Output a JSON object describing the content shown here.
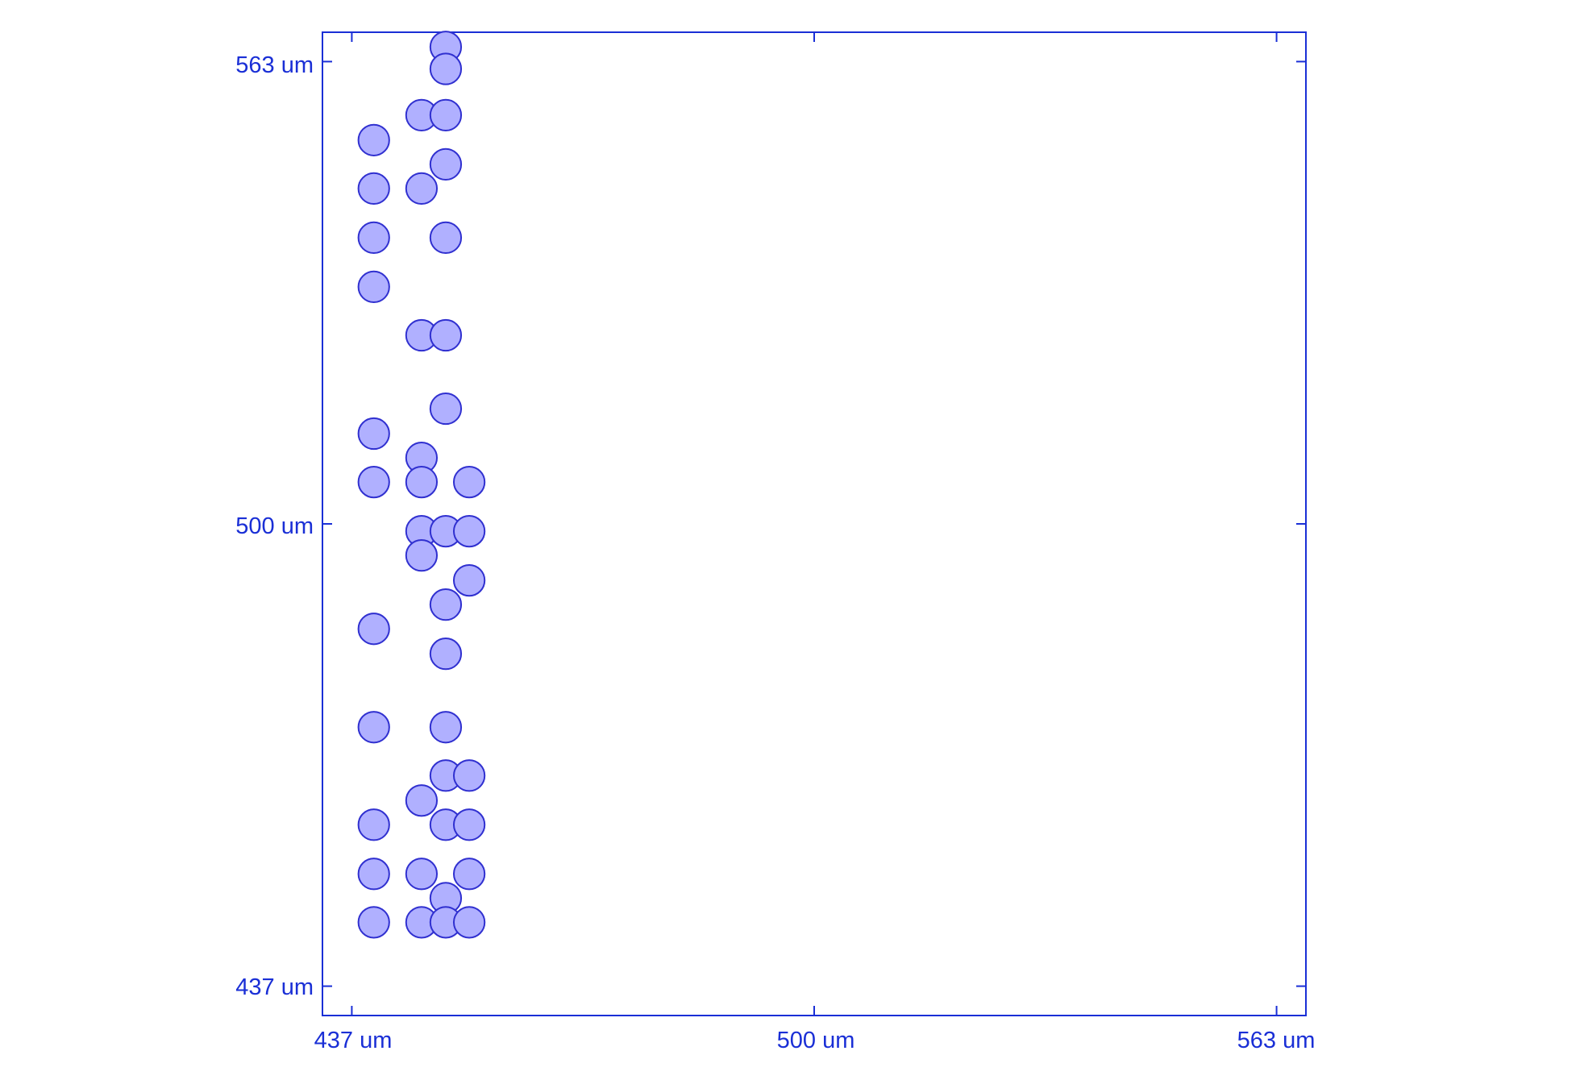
{
  "chart_data": {
    "type": "scatter",
    "title": "",
    "xlabel": "",
    "ylabel": "",
    "xlim": [
      433,
      567
    ],
    "ylim": [
      433,
      567
    ],
    "x_ticks": [
      437,
      500,
      563
    ],
    "y_ticks": [
      437,
      500,
      563
    ],
    "x_tick_labels": [
      "437 um",
      "500 um",
      "563 um"
    ],
    "y_tick_labels": [
      "437 um",
      "500 um",
      "563 um"
    ],
    "grid": false,
    "legend": "none",
    "axis_color": "#1a2fd6",
    "marker_diameter_um": 4.2,
    "lattice": {
      "columns_x": [
        440.0,
        443.3,
        446.5,
        449.8,
        453.0,
        456.3,
        459.5,
        462.8,
        466.0,
        469.3,
        472.5,
        475.8,
        479.0,
        482.3,
        485.5,
        488.8,
        492.0,
        495.3,
        498.5,
        501.8,
        505.0,
        508.3,
        511.5,
        514.8,
        518.0,
        521.3,
        524.5,
        527.8,
        531.0,
        534.3,
        537.5,
        540.8,
        544.0,
        547.3,
        550.5,
        553.8,
        557.0,
        560.3
      ],
      "rows_y": [
        562.0,
        559.0,
        555.7,
        552.3,
        549.0,
        545.7,
        542.3,
        539.0,
        535.7,
        532.3,
        529.0,
        525.7,
        522.3,
        519.0,
        515.7,
        512.3,
        509.0,
        505.7,
        502.3,
        499.0,
        495.7,
        492.3,
        489.0,
        485.7,
        482.3,
        479.0,
        475.7,
        472.3,
        469.0,
        465.7,
        462.3,
        459.0,
        455.7,
        452.3,
        449.0,
        445.7,
        442.3,
        439.0,
        435.8
      ]
    },
    "series": [
      {
        "color": "#3030d0",
        "fill": "#b0b0ff",
        "points": [
          [
            440.0,
            552.3
          ],
          [
            440.0,
            545.7
          ],
          [
            440.0,
            539.0
          ],
          [
            440.0,
            532.3
          ],
          [
            440.0,
            512.3
          ],
          [
            440.0,
            505.7
          ],
          [
            440.0,
            485.7
          ],
          [
            440.0,
            472.3
          ],
          [
            440.0,
            459.0
          ],
          [
            440.0,
            452.3
          ],
          [
            440.0,
            445.7
          ],
          [
            446.5,
            555.7
          ],
          [
            446.5,
            545.7
          ],
          [
            446.5,
            525.7
          ],
          [
            446.5,
            509.0
          ],
          [
            446.5,
            505.7
          ],
          [
            446.5,
            499.0
          ],
          [
            446.5,
            495.7
          ],
          [
            446.5,
            462.3
          ],
          [
            446.5,
            452.3
          ],
          [
            446.5,
            445.7
          ],
          [
            449.8,
            565.0
          ],
          [
            449.8,
            562.0
          ],
          [
            449.8,
            555.7
          ],
          [
            449.8,
            549.0
          ],
          [
            449.8,
            539.0
          ],
          [
            449.8,
            525.7
          ],
          [
            449.8,
            515.7
          ],
          [
            449.8,
            499.0
          ],
          [
            449.8,
            489.0
          ],
          [
            449.8,
            482.3
          ],
          [
            449.8,
            472.3
          ],
          [
            449.8,
            465.7
          ],
          [
            449.8,
            459.0
          ],
          [
            449.8,
            449.0
          ],
          [
            449.8,
            445.7
          ],
          [
            453.0,
            505.7
          ],
          [
            453.0,
            499.0
          ],
          [
            453.0,
            492.3
          ],
          [
            453.0,
            465.7
          ],
          [
            453.0,
            459.0
          ],
          [
            453.0,
            452.3
          ],
          [
            453.0,
            445.7
          ]
        ]
      }
    ]
  }
}
